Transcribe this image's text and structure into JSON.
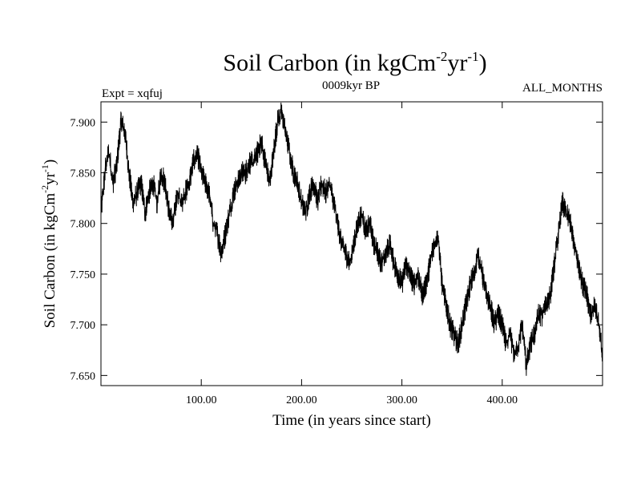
{
  "chart_data": {
    "type": "line",
    "title": "Soil Carbon (in kgCm",
    "title_sup1": "-2",
    "title_mid": "yr",
    "title_sup2": "-1",
    "title_end": ")",
    "subtitle_left": "Expt = xqfuj",
    "subtitle_center": "0009kyr BP",
    "subtitle_right": "ALL_MONTHS",
    "xlabel": "Time (in years since start)",
    "ylabel": "Soil Carbon (in kgCm",
    "ylabel_sup1": "-2",
    "ylabel_mid": "yr",
    "ylabel_sup2": "-1",
    "ylabel_end": ")",
    "xlim": [
      0,
      500
    ],
    "ylim": [
      7.64,
      7.92
    ],
    "xticks": [
      100,
      200,
      300,
      400
    ],
    "xtick_labels": [
      "100.00",
      "200.00",
      "300.00",
      "400.00"
    ],
    "yticks": [
      7.65,
      7.7,
      7.75,
      7.8,
      7.85,
      7.9
    ],
    "ytick_labels": [
      "7.650",
      "7.700",
      "7.750",
      "7.800",
      "7.850",
      "7.900"
    ],
    "grid": false,
    "line_color": "#000000",
    "series": [
      {
        "x": [
          0,
          5,
          8,
          12,
          16,
          20,
          24,
          28,
          32,
          36,
          40,
          44,
          48,
          52,
          56,
          60,
          64,
          68,
          72,
          76,
          80,
          84,
          88,
          92,
          96,
          100,
          104,
          108,
          112,
          116,
          120,
          124,
          128,
          132,
          136,
          140,
          144,
          148,
          152,
          156,
          160,
          164,
          168,
          172,
          176,
          180,
          184,
          188,
          192,
          196,
          200,
          204,
          208,
          212,
          216,
          220,
          224,
          228,
          232,
          236,
          240,
          244,
          248,
          252,
          256,
          260,
          264,
          268,
          272,
          276,
          280,
          284,
          288,
          292,
          296,
          300,
          304,
          308,
          312,
          316,
          320,
          324,
          328,
          332,
          336,
          340,
          344,
          348,
          352,
          356,
          360,
          364,
          368,
          372,
          376,
          380,
          384,
          388,
          392,
          396,
          400,
          404,
          408,
          412,
          416,
          420,
          424,
          428,
          432,
          436,
          440,
          444,
          448,
          452,
          456,
          460,
          464,
          468,
          472,
          476,
          480,
          484,
          488,
          492,
          496,
          500
        ],
        "values": [
          7.81,
          7.86,
          7.87,
          7.84,
          7.86,
          7.9,
          7.89,
          7.85,
          7.82,
          7.83,
          7.84,
          7.81,
          7.83,
          7.84,
          7.82,
          7.85,
          7.84,
          7.81,
          7.8,
          7.83,
          7.82,
          7.83,
          7.84,
          7.86,
          7.87,
          7.85,
          7.84,
          7.83,
          7.8,
          7.79,
          7.77,
          7.79,
          7.81,
          7.83,
          7.84,
          7.85,
          7.85,
          7.86,
          7.86,
          7.87,
          7.88,
          7.86,
          7.84,
          7.87,
          7.9,
          7.91,
          7.89,
          7.87,
          7.85,
          7.84,
          7.82,
          7.81,
          7.83,
          7.84,
          7.82,
          7.84,
          7.83,
          7.84,
          7.82,
          7.8,
          7.78,
          7.77,
          7.76,
          7.78,
          7.8,
          7.81,
          7.79,
          7.8,
          7.78,
          7.77,
          7.76,
          7.77,
          7.78,
          7.76,
          7.75,
          7.74,
          7.76,
          7.75,
          7.74,
          7.75,
          7.73,
          7.74,
          7.76,
          7.78,
          7.79,
          7.74,
          7.72,
          7.7,
          7.69,
          7.68,
          7.7,
          7.72,
          7.74,
          7.75,
          7.77,
          7.75,
          7.73,
          7.72,
          7.7,
          7.71,
          7.7,
          7.68,
          7.69,
          7.67,
          7.68,
          7.7,
          7.66,
          7.68,
          7.69,
          7.71,
          7.71,
          7.72,
          7.73,
          7.76,
          7.79,
          7.82,
          7.81,
          7.8,
          7.78,
          7.76,
          7.74,
          7.73,
          7.71,
          7.72,
          7.7,
          7.67
        ]
      }
    ]
  }
}
